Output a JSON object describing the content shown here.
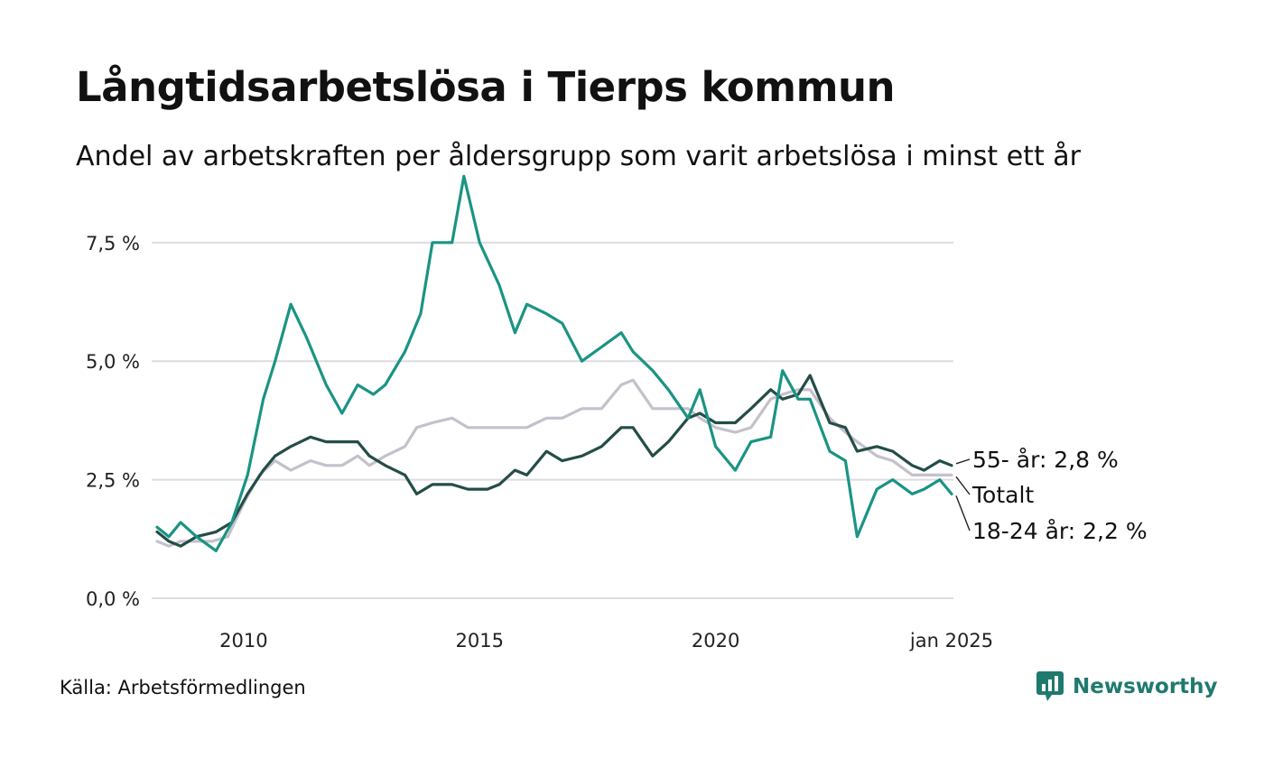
{
  "title": "Långtidsarbetslösa i Tierps kommun",
  "subtitle": "Andel av arbetskraften per åldersgrupp som varit arbetslösa i minst ett år",
  "source": "Källa: Arbetsförmedlingen",
  "brand": {
    "name": "Newsworthy",
    "icon": "newsworthy-logo-icon",
    "color": "#1f7a6e"
  },
  "chart_data": {
    "type": "line",
    "x_range": [
      "2008-03",
      "2025-01"
    ],
    "ylim": [
      0,
      9
    ],
    "grid": true,
    "y_ticks": [
      {
        "value": 0,
        "label": "0,0 %"
      },
      {
        "value": 2.5,
        "label": "2,5 %"
      },
      {
        "value": 5,
        "label": "5,0 %"
      },
      {
        "value": 7.5,
        "label": "7,5 %"
      }
    ],
    "x_ticks": [
      {
        "value": "2010-01",
        "label": "2010"
      },
      {
        "value": "2015-01",
        "label": "2015"
      },
      {
        "value": "2020-01",
        "label": "2020"
      },
      {
        "value": "2025-01",
        "label": "jan 2025"
      }
    ],
    "series": [
      {
        "name": "Totalt",
        "end_label": "Totalt",
        "color": "#c4c1cc",
        "points": [
          [
            "2008-03",
            1.2
          ],
          [
            "2008-06",
            1.1
          ],
          [
            "2008-09",
            1.2
          ],
          [
            "2009-01",
            1.2
          ],
          [
            "2009-05",
            1.2
          ],
          [
            "2009-09",
            1.3
          ],
          [
            "2010-01",
            2.0
          ],
          [
            "2010-05",
            2.6
          ],
          [
            "2010-09",
            2.9
          ],
          [
            "2011-01",
            2.7
          ],
          [
            "2011-06",
            2.9
          ],
          [
            "2011-10",
            2.8
          ],
          [
            "2012-02",
            2.8
          ],
          [
            "2012-06",
            3.0
          ],
          [
            "2012-09",
            2.8
          ],
          [
            "2013-01",
            3.0
          ],
          [
            "2013-06",
            3.2
          ],
          [
            "2013-09",
            3.6
          ],
          [
            "2014-01",
            3.7
          ],
          [
            "2014-06",
            3.8
          ],
          [
            "2014-10",
            3.6
          ],
          [
            "2015-03",
            3.6
          ],
          [
            "2015-06",
            3.6
          ],
          [
            "2015-10",
            3.6
          ],
          [
            "2016-01",
            3.6
          ],
          [
            "2016-06",
            3.8
          ],
          [
            "2016-10",
            3.8
          ],
          [
            "2017-03",
            4.0
          ],
          [
            "2017-08",
            4.0
          ],
          [
            "2018-01",
            4.5
          ],
          [
            "2018-04",
            4.6
          ],
          [
            "2018-09",
            4.0
          ],
          [
            "2019-01",
            4.0
          ],
          [
            "2019-06",
            4.0
          ],
          [
            "2019-09",
            3.8
          ],
          [
            "2020-01",
            3.6
          ],
          [
            "2020-06",
            3.5
          ],
          [
            "2020-10",
            3.6
          ],
          [
            "2021-03",
            4.2
          ],
          [
            "2021-06",
            4.3
          ],
          [
            "2021-10",
            4.4
          ],
          [
            "2022-01",
            4.4
          ],
          [
            "2022-06",
            3.8
          ],
          [
            "2022-10",
            3.5
          ],
          [
            "2023-01",
            3.3
          ],
          [
            "2023-06",
            3.0
          ],
          [
            "2023-10",
            2.9
          ],
          [
            "2024-03",
            2.6
          ],
          [
            "2024-06",
            2.6
          ],
          [
            "2024-10",
            2.6
          ],
          [
            "2025-01",
            2.6
          ]
        ]
      },
      {
        "name": "55- år",
        "end_label": "55- år: 2,8 %",
        "color": "#244d47",
        "points": [
          [
            "2008-03",
            1.4
          ],
          [
            "2008-06",
            1.2
          ],
          [
            "2008-09",
            1.1
          ],
          [
            "2009-01",
            1.3
          ],
          [
            "2009-06",
            1.4
          ],
          [
            "2009-10",
            1.6
          ],
          [
            "2010-02",
            2.2
          ],
          [
            "2010-06",
            2.7
          ],
          [
            "2010-09",
            3.0
          ],
          [
            "2011-01",
            3.2
          ],
          [
            "2011-06",
            3.4
          ],
          [
            "2011-10",
            3.3
          ],
          [
            "2012-02",
            3.3
          ],
          [
            "2012-06",
            3.3
          ],
          [
            "2012-09",
            3.0
          ],
          [
            "2013-01",
            2.8
          ],
          [
            "2013-06",
            2.6
          ],
          [
            "2013-09",
            2.2
          ],
          [
            "2014-01",
            2.4
          ],
          [
            "2014-06",
            2.4
          ],
          [
            "2014-10",
            2.3
          ],
          [
            "2015-03",
            2.3
          ],
          [
            "2015-06",
            2.4
          ],
          [
            "2015-10",
            2.7
          ],
          [
            "2016-01",
            2.6
          ],
          [
            "2016-06",
            3.1
          ],
          [
            "2016-10",
            2.9
          ],
          [
            "2017-03",
            3.0
          ],
          [
            "2017-08",
            3.2
          ],
          [
            "2018-01",
            3.6
          ],
          [
            "2018-04",
            3.6
          ],
          [
            "2018-09",
            3.0
          ],
          [
            "2019-01",
            3.3
          ],
          [
            "2019-06",
            3.8
          ],
          [
            "2019-09",
            3.9
          ],
          [
            "2020-01",
            3.7
          ],
          [
            "2020-06",
            3.7
          ],
          [
            "2020-10",
            4.0
          ],
          [
            "2021-03",
            4.4
          ],
          [
            "2021-06",
            4.2
          ],
          [
            "2021-10",
            4.3
          ],
          [
            "2022-01",
            4.7
          ],
          [
            "2022-06",
            3.7
          ],
          [
            "2022-10",
            3.6
          ],
          [
            "2023-01",
            3.1
          ],
          [
            "2023-06",
            3.2
          ],
          [
            "2023-10",
            3.1
          ],
          [
            "2024-03",
            2.8
          ],
          [
            "2024-06",
            2.7
          ],
          [
            "2024-10",
            2.9
          ],
          [
            "2025-01",
            2.8
          ]
        ]
      },
      {
        "name": "18-24 år",
        "end_label": "18-24 år: 2,2 %",
        "color": "#1a9484",
        "points": [
          [
            "2008-03",
            1.5
          ],
          [
            "2008-06",
            1.3
          ],
          [
            "2008-09",
            1.6
          ],
          [
            "2009-01",
            1.3
          ],
          [
            "2009-06",
            1.0
          ],
          [
            "2009-10",
            1.6
          ],
          [
            "2010-02",
            2.6
          ],
          [
            "2010-06",
            4.2
          ],
          [
            "2010-09",
            5.0
          ],
          [
            "2011-01",
            6.2
          ],
          [
            "2011-05",
            5.5
          ],
          [
            "2011-10",
            4.5
          ],
          [
            "2012-02",
            3.9
          ],
          [
            "2012-06",
            4.5
          ],
          [
            "2012-10",
            4.3
          ],
          [
            "2013-01",
            4.5
          ],
          [
            "2013-06",
            5.2
          ],
          [
            "2013-10",
            6.0
          ],
          [
            "2014-01",
            7.5
          ],
          [
            "2014-06",
            7.5
          ],
          [
            "2014-09",
            8.9
          ],
          [
            "2015-01",
            7.5
          ],
          [
            "2015-06",
            6.6
          ],
          [
            "2015-10",
            5.6
          ],
          [
            "2016-01",
            6.2
          ],
          [
            "2016-06",
            6.0
          ],
          [
            "2016-10",
            5.8
          ],
          [
            "2017-03",
            5.0
          ],
          [
            "2017-08",
            5.3
          ],
          [
            "2018-01",
            5.6
          ],
          [
            "2018-04",
            5.2
          ],
          [
            "2018-09",
            4.8
          ],
          [
            "2019-01",
            4.4
          ],
          [
            "2019-06",
            3.8
          ],
          [
            "2019-09",
            4.4
          ],
          [
            "2020-01",
            3.2
          ],
          [
            "2020-06",
            2.7
          ],
          [
            "2020-10",
            3.3
          ],
          [
            "2021-03",
            3.4
          ],
          [
            "2021-06",
            4.8
          ],
          [
            "2021-10",
            4.2
          ],
          [
            "2022-01",
            4.2
          ],
          [
            "2022-06",
            3.1
          ],
          [
            "2022-10",
            2.9
          ],
          [
            "2023-01",
            1.3
          ],
          [
            "2023-06",
            2.3
          ],
          [
            "2023-10",
            2.5
          ],
          [
            "2024-03",
            2.2
          ],
          [
            "2024-06",
            2.3
          ],
          [
            "2024-10",
            2.5
          ],
          [
            "2025-01",
            2.2
          ]
        ]
      }
    ]
  }
}
